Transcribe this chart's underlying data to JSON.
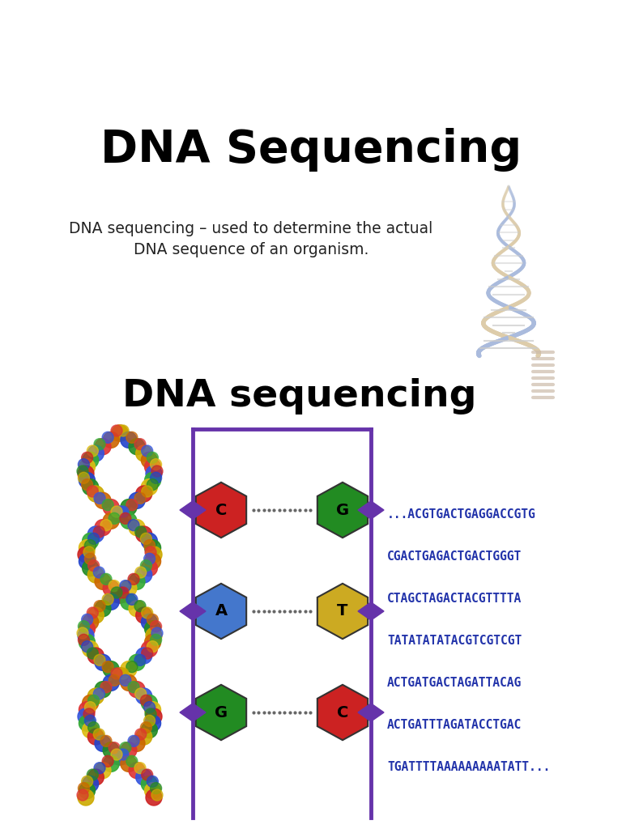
{
  "title1": "DNA Sequencing",
  "subtitle_line1": "DNA sequencing – used to determine the actual",
  "subtitle_line2": "DNA sequence of an organism.",
  "title2": "DNA sequencing",
  "seq_lines": [
    "...ACGTGACTGAGGACCGTG",
    "CGACTGAGACTGACTGGGT",
    "CTAGCTAGACTACGTTTTA",
    "TATATATATACGTCGTCGT",
    "ACTGATGACTAGATTACAG",
    "ACTGATTTAGATACCTGAC",
    "TGATTTTAAAAAAAAATATT..."
  ],
  "seq_color": "#2233AA",
  "bg_color": "#ffffff",
  "title1_fontsize": 40,
  "title2_fontsize": 34,
  "subtitle_fontsize": 13.5,
  "seq_fontsize": 10.5,
  "nucleotide_pairs": [
    {
      "left": "C",
      "right": "G",
      "left_color": "#cc2222",
      "right_color": "#228B22"
    },
    {
      "left": "A",
      "right": "T",
      "left_color": "#4477cc",
      "right_color": "#ccaa22"
    },
    {
      "left": "G",
      "right": "C",
      "left_color": "#228B22",
      "right_color": "#cc2222"
    }
  ],
  "connector_color": "#666666",
  "tube_color": "#6633aa",
  "helix_color1": "#aabbdd",
  "helix_color2": "#ddccaa",
  "helix_rung_color": "#cccccc"
}
